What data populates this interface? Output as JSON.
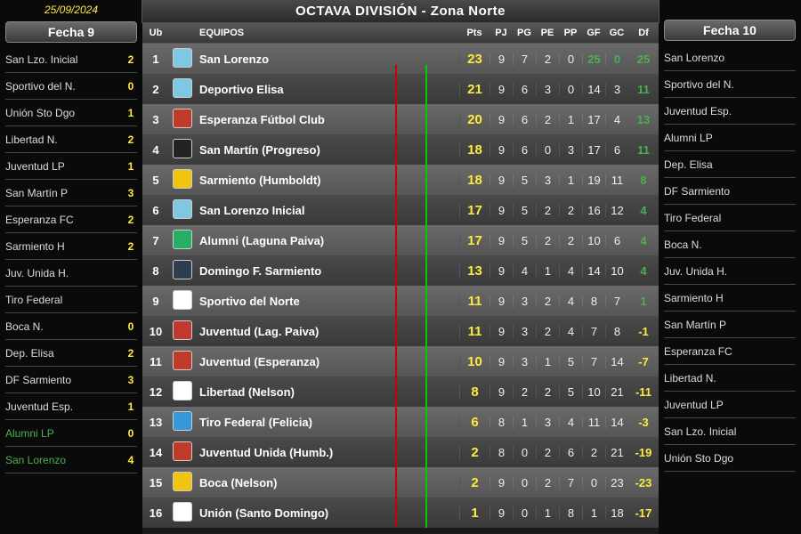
{
  "date": "25/09/2024",
  "title": "OCTAVA DIVISIÓN - Zona Norte",
  "colors": {
    "bg": "#0a0a0a",
    "yellow": "#ffeb3b",
    "green": "#4caf50",
    "red": "#c00",
    "row_light": "#6a6a6a",
    "row_dark": "#4a4a4a"
  },
  "columns": {
    "ub": "Ub",
    "equipos": "EQUIPOS",
    "pts": "Pts",
    "pj": "PJ",
    "pg": "PG",
    "pe": "PE",
    "pp": "PP",
    "gf": "GF",
    "gc": "GC",
    "df": "Df"
  },
  "fecha9": {
    "label": "Fecha 9",
    "matches": [
      {
        "home": "San Lzo. Inicial",
        "hs": "2",
        "away": "Sportivo del N.",
        "as": "0"
      },
      {
        "home": "Unión Sto Dgo",
        "hs": "1",
        "away": "Libertad N.",
        "as": "2"
      },
      {
        "home": "Juventud LP",
        "hs": "1",
        "away": "San Martín P",
        "as": "3"
      },
      {
        "home": "Esperanza FC",
        "hs": "2",
        "away": "Sarmiento H",
        "as": "2"
      },
      {
        "home": "Juv. Unida H.",
        "hs": "",
        "away": "Tiro Federal",
        "as": "",
        "red": true
      },
      {
        "home": "Boca N.",
        "hs": "0",
        "away": "Dep. Elisa",
        "as": "2"
      },
      {
        "home": "DF Sarmiento",
        "hs": "3",
        "away": "Juventud Esp.",
        "as": "1"
      },
      {
        "home": "Alumni LP",
        "hs": "0",
        "away": "San Lorenzo",
        "as": "4",
        "green": true
      }
    ]
  },
  "fecha10": {
    "label": "Fecha 10",
    "matches": [
      {
        "home": "San Lorenzo",
        "away": "Sportivo del N."
      },
      {
        "home": "Juventud Esp.",
        "away": "Alumni LP"
      },
      {
        "home": "Dep. Elisa",
        "away": "DF Sarmiento"
      },
      {
        "home": "Tiro Federal",
        "away": "Boca N."
      },
      {
        "home": "Juv. Unida H.",
        "away": "Sarmiento H"
      },
      {
        "home": "San Martín P",
        "away": "Esperanza FC"
      },
      {
        "home": "Libertad N.",
        "away": "Juventud LP"
      },
      {
        "home": "San Lzo. Inicial",
        "away": "Unión Sto Dgo"
      }
    ]
  },
  "standings": [
    {
      "ub": "1",
      "team": "San Lorenzo",
      "crest": "#7ec8e3",
      "pts": "23",
      "pj": "9",
      "pg": "7",
      "pe": "2",
      "pp": "0",
      "gf": "25",
      "gc": "0",
      "df": "25",
      "gf_top": true,
      "gc_top": true
    },
    {
      "ub": "2",
      "team": "Deportivo Elisa",
      "crest": "#7ec8e3",
      "pts": "21",
      "pj": "9",
      "pg": "6",
      "pe": "3",
      "pp": "0",
      "gf": "14",
      "gc": "3",
      "df": "11"
    },
    {
      "ub": "3",
      "team": "Esperanza Fútbol Club",
      "crest": "#c0392b",
      "pts": "20",
      "pj": "9",
      "pg": "6",
      "pe": "2",
      "pp": "1",
      "gf": "17",
      "gc": "4",
      "df": "13"
    },
    {
      "ub": "4",
      "team": "San Martín (Progreso)",
      "crest": "#222",
      "pts": "18",
      "pj": "9",
      "pg": "6",
      "pe": "0",
      "pp": "3",
      "gf": "17",
      "gc": "6",
      "df": "11"
    },
    {
      "ub": "5",
      "team": "Sarmiento (Humboldt)",
      "crest": "#f1c40f",
      "pts": "18",
      "pj": "9",
      "pg": "5",
      "pe": "3",
      "pp": "1",
      "gf": "19",
      "gc": "11",
      "df": "8"
    },
    {
      "ub": "6",
      "team": "San Lorenzo Inicial",
      "crest": "#7ec8e3",
      "pts": "17",
      "pj": "9",
      "pg": "5",
      "pe": "2",
      "pp": "2",
      "gf": "16",
      "gc": "12",
      "df": "4"
    },
    {
      "ub": "7",
      "team": "Alumni (Laguna Paiva)",
      "crest": "#27ae60",
      "pts": "17",
      "pj": "9",
      "pg": "5",
      "pe": "2",
      "pp": "2",
      "gf": "10",
      "gc": "6",
      "df": "4"
    },
    {
      "ub": "8",
      "team": "Domingo F. Sarmiento",
      "crest": "#2c3e50",
      "pts": "13",
      "pj": "9",
      "pg": "4",
      "pe": "1",
      "pp": "4",
      "gf": "14",
      "gc": "10",
      "df": "4"
    },
    {
      "ub": "9",
      "team": "Sportivo del Norte",
      "crest": "#fff",
      "pts": "11",
      "pj": "9",
      "pg": "3",
      "pe": "2",
      "pp": "4",
      "gf": "8",
      "gc": "7",
      "df": "1"
    },
    {
      "ub": "10",
      "team": "Juventud (Lag. Paiva)",
      "crest": "#c0392b",
      "pts": "11",
      "pj": "9",
      "pg": "3",
      "pe": "2",
      "pp": "4",
      "gf": "7",
      "gc": "8",
      "df": "-1"
    },
    {
      "ub": "11",
      "team": "Juventud (Esperanza)",
      "crest": "#c0392b",
      "pts": "10",
      "pj": "9",
      "pg": "3",
      "pe": "1",
      "pp": "5",
      "gf": "7",
      "gc": "14",
      "df": "-7"
    },
    {
      "ub": "12",
      "team": "Libertad (Nelson)",
      "crest": "#fff",
      "pts": "8",
      "pj": "9",
      "pg": "2",
      "pe": "2",
      "pp": "5",
      "gf": "10",
      "gc": "21",
      "df": "-11"
    },
    {
      "ub": "13",
      "team": "Tiro Federal (Felicia)",
      "crest": "#3498db",
      "pts": "6",
      "pj": "8",
      "pg": "1",
      "pe": "3",
      "pp": "4",
      "gf": "11",
      "gc": "14",
      "df": "-3"
    },
    {
      "ub": "14",
      "team": "Juventud Unida (Humb.)",
      "crest": "#c0392b",
      "pts": "2",
      "pj": "8",
      "pg": "0",
      "pe": "2",
      "pp": "6",
      "gf": "2",
      "gc": "21",
      "df": "-19"
    },
    {
      "ub": "15",
      "team": "Boca (Nelson)",
      "crest": "#f1c40f",
      "pts": "2",
      "pj": "9",
      "pg": "0",
      "pe": "2",
      "pp": "7",
      "gf": "0",
      "gc": "23",
      "df": "-23"
    },
    {
      "ub": "16",
      "team": "Unión (Santo Domingo)",
      "crest": "#fff",
      "pts": "1",
      "pj": "9",
      "pg": "0",
      "pe": "1",
      "pp": "8",
      "gf": "1",
      "gc": "18",
      "df": "-17"
    }
  ]
}
